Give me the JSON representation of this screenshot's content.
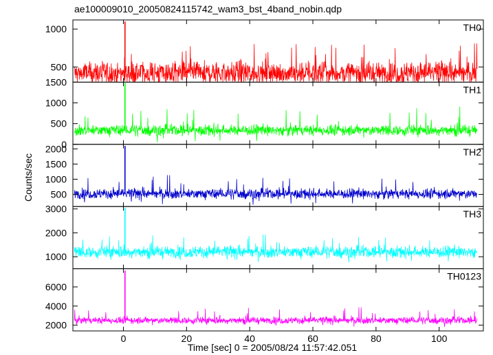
{
  "chart_data": {
    "type": "line",
    "title": "ae100009010_20050824115742_wam3_bst_4band_nobin.qdp",
    "xlabel": "Time [sec] 0 = 2005/08/24 11:57:42.051",
    "ylabel": "Counts/sec",
    "xlim": [
      -16,
      114
    ],
    "x_ticks": [
      0,
      20,
      40,
      60,
      80,
      100
    ],
    "x_tick_labels": [
      "0",
      "20",
      "40",
      "60",
      "80",
      "100"
    ],
    "x_range": [
      -15.5,
      112
    ],
    "burst_time": 0.5,
    "grid": false,
    "panels": [
      {
        "name": "TH0",
        "color": "#ff0000",
        "ylim": [
          300,
          1120
        ],
        "ticks": [
          500,
          1000
        ],
        "tick_labels": [
          "500",
          "1000"
        ],
        "mean": 420,
        "spread": 110,
        "max_noise": 820,
        "min_noise": 240,
        "burst_peak": 1100
      },
      {
        "name": "TH1",
        "color": "#00ff00",
        "ylim": [
          0,
          1500
        ],
        "ticks": [
          0,
          500,
          1000,
          1500
        ],
        "tick_labels": [
          "0",
          "500",
          "1000",
          "1500"
        ],
        "mean": 340,
        "spread": 95,
        "max_noise": 950,
        "min_noise": 40,
        "burst_peak": 1480
      },
      {
        "name": "TH2",
        "color": "#0000cc",
        "ylim": [
          100,
          2150
        ],
        "ticks": [
          500,
          1000,
          1500,
          2000
        ],
        "tick_labels": [
          "500",
          "1000",
          "1500",
          "2000"
        ],
        "mean": 520,
        "spread": 120,
        "max_noise": 1150,
        "min_noise": 150,
        "burst_peak": 2100
      },
      {
        "name": "TH3",
        "color": "#00ffff",
        "ylim": [
          500,
          3100
        ],
        "ticks": [
          1000,
          2000,
          3000
        ],
        "tick_labels": [
          "1000",
          "2000",
          "3000"
        ],
        "mean": 1200,
        "spread": 180,
        "max_noise": 1950,
        "min_noise": 750,
        "burst_peak": 3050
      },
      {
        "name": "TH0123",
        "color": "#ff00ff",
        "ylim": [
          1400,
          7900
        ],
        "ticks": [
          2000,
          4000,
          6000
        ],
        "tick_labels": [
          "2000",
          "4000",
          "6000"
        ],
        "mean": 2500,
        "spread": 260,
        "max_noise": 3900,
        "min_noise": 1800,
        "burst_peak": 7700
      }
    ]
  }
}
